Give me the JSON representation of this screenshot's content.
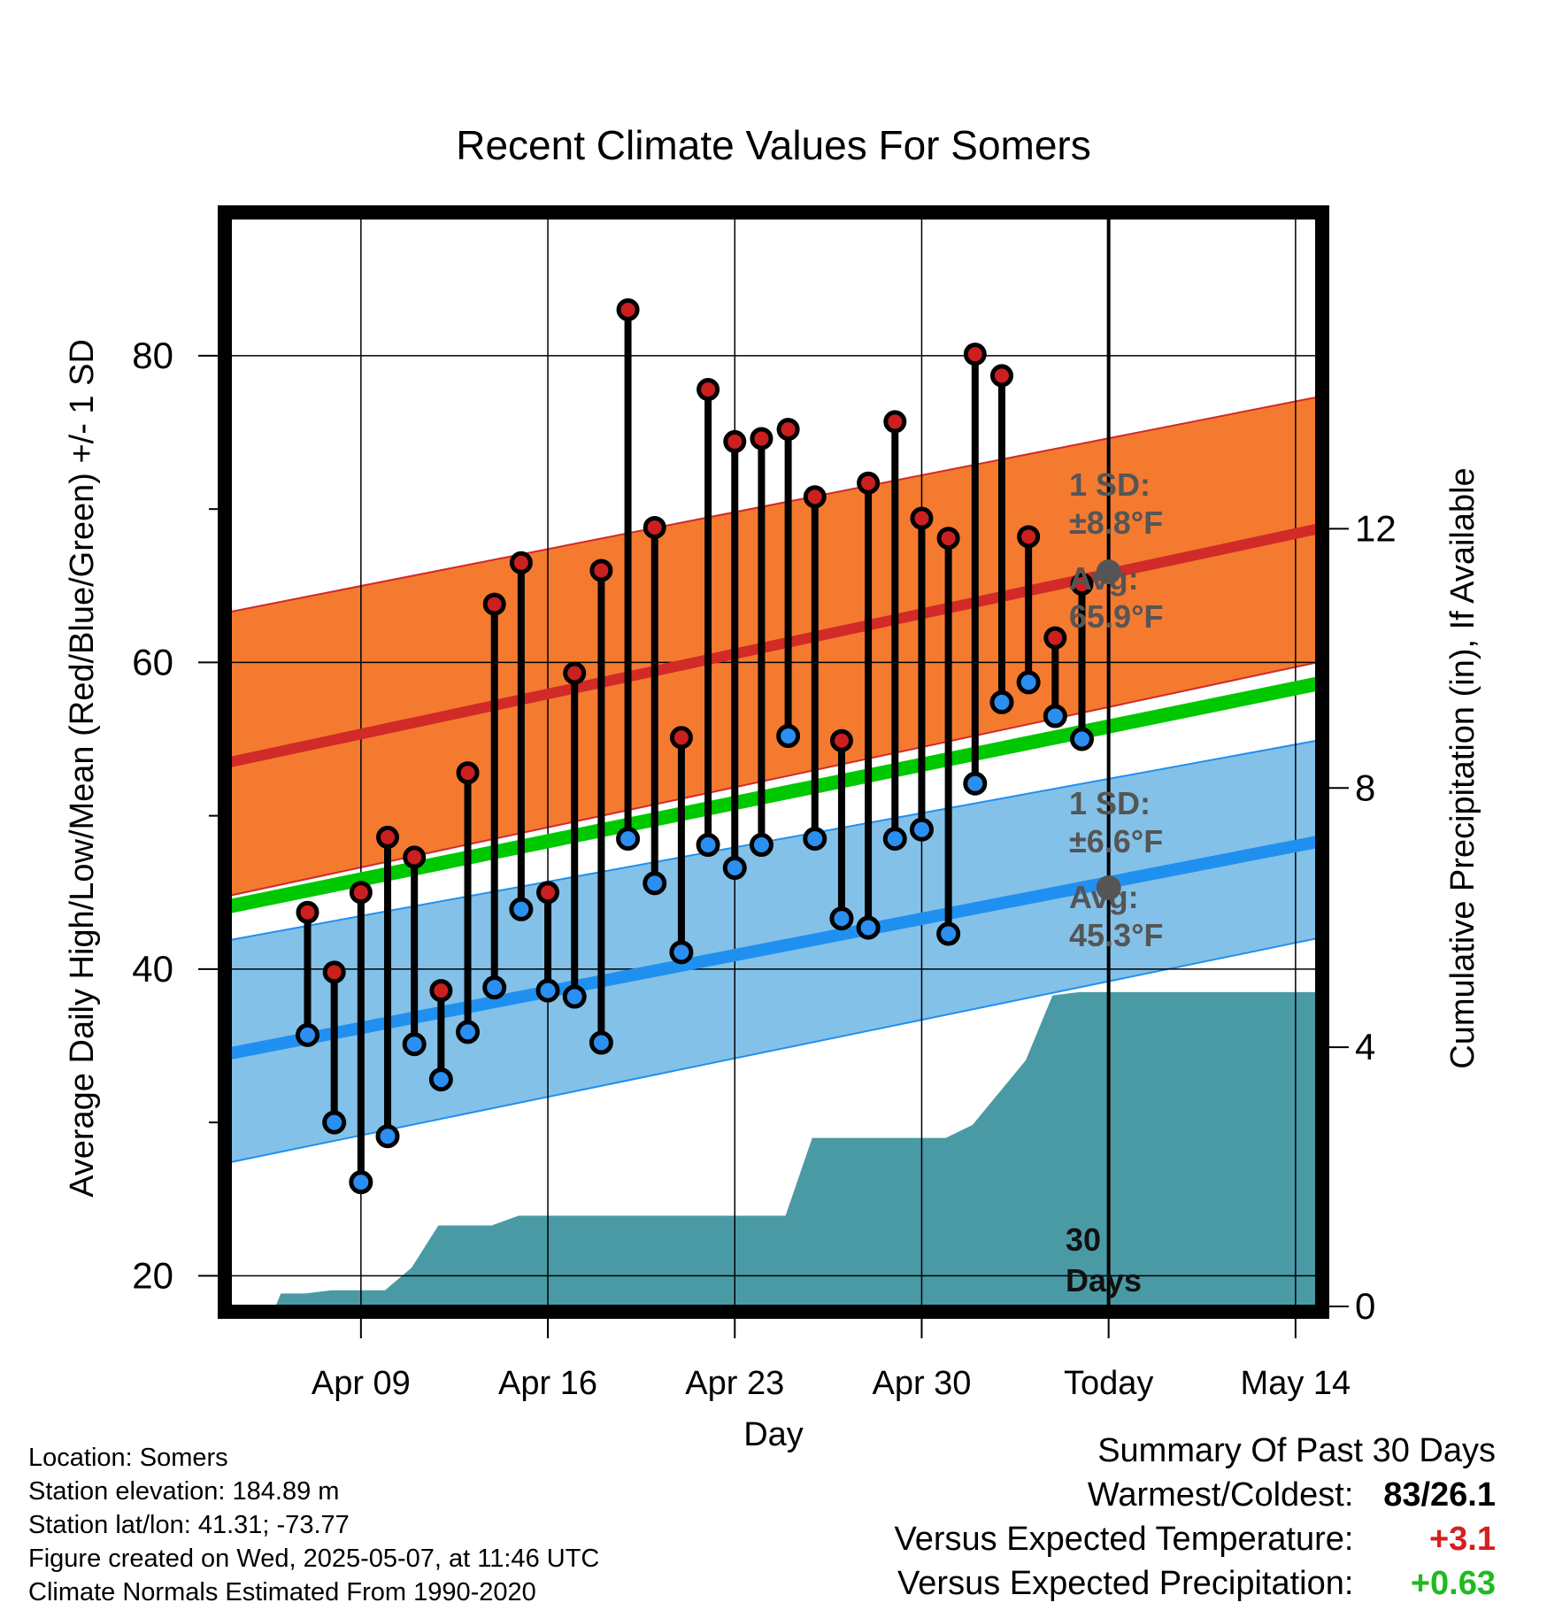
{
  "title": "Recent Climate Values For Somers",
  "colors": {
    "high_band": "#f47a30",
    "high_mean": "#d12a27",
    "low_band": "#84c1e8",
    "low_mean": "#2090f0",
    "green_mean": "#00c800",
    "precip": "#4a9aa5",
    "high_dot": "#cc1f1f",
    "low_dot": "#2a8ff0",
    "today_dot": "#555555",
    "warm": "#d42020",
    "wet": "#1fbb1f",
    "annot": "#555555"
  },
  "chart_data": {
    "type": "line",
    "xlabel": "Day",
    "ylabel": "Average Daily High/Low/Mean (Red/Blue/Green) +/- 1 SD",
    "y2label": "Cumulative Precipitation (in), If Available",
    "xlim": [
      -1.9,
      38.8
    ],
    "ylim": [
      18,
      89
    ],
    "y2lim": [
      0,
      16.8
    ],
    "x_ticks": [
      {
        "x": 3,
        "label": "Apr 09"
      },
      {
        "x": 10,
        "label": "Apr 16"
      },
      {
        "x": 17,
        "label": "Apr 23"
      },
      {
        "x": 24,
        "label": "Apr 30"
      },
      {
        "x": 31,
        "label": "Today"
      },
      {
        "x": 38,
        "label": "May 14"
      }
    ],
    "y_ticks": [
      20,
      40,
      60,
      80
    ],
    "y_minor_ticks": [
      30,
      50,
      70
    ],
    "y2_ticks": [
      0,
      4,
      8,
      12
    ],
    "today_x": 31,
    "normals_x": [
      -1.9,
      38.8
    ],
    "high_mean": [
      53.5,
      68.7
    ],
    "high_upper": [
      63.3,
      77.3
    ],
    "high_lower": [
      44.8,
      60.0
    ],
    "mean_line": [
      44.1,
      58.6
    ],
    "low_mean": [
      34.5,
      48.3
    ],
    "low_upper": [
      41.9,
      54.9
    ],
    "low_lower": [
      27.4,
      42.0
    ],
    "days": [
      1,
      2,
      3,
      4,
      5,
      6,
      7,
      8,
      9,
      10,
      11,
      12,
      13,
      14,
      15,
      16,
      17,
      18,
      19,
      20,
      21,
      22,
      23,
      24,
      25,
      26,
      27,
      28,
      29,
      30
    ],
    "highs": [
      43.7,
      39.8,
      45.0,
      48.6,
      47.3,
      38.6,
      52.8,
      63.8,
      66.5,
      45.0,
      59.3,
      66.0,
      83.0,
      68.8,
      55.1,
      77.8,
      74.4,
      74.6,
      75.2,
      70.8,
      54.9,
      71.7,
      75.7,
      69.4,
      68.1,
      80.1,
      78.7,
      68.2,
      61.6,
      65.1
    ],
    "lows": [
      35.7,
      30.0,
      26.1,
      29.1,
      35.1,
      32.8,
      35.9,
      38.8,
      43.9,
      38.6,
      38.2,
      35.2,
      48.5,
      45.6,
      41.1,
      48.1,
      46.6,
      48.1,
      55.2,
      48.5,
      43.3,
      42.7,
      48.5,
      49.1,
      42.3,
      52.1,
      57.4,
      58.7,
      56.5,
      55.0
    ],
    "precip_x": [
      -0.2,
      0.0,
      0.9,
      1.9,
      2.9,
      3.9,
      4.9,
      5.9,
      6.9,
      7.9,
      8.9,
      9.9,
      10.9,
      11.9,
      12.9,
      13.9,
      14.9,
      15.9,
      16.9,
      17.9,
      18.9,
      19.9,
      20.9,
      21.9,
      22.9,
      23.9,
      24.9,
      25.9,
      26.9,
      27.9,
      28.9,
      29.9,
      30.9,
      31.9,
      38.8
    ],
    "precip_y": [
      0.0,
      0.2,
      0.2,
      0.25,
      0.25,
      0.25,
      0.6,
      1.25,
      1.25,
      1.25,
      1.4,
      1.4,
      1.4,
      1.4,
      1.4,
      1.4,
      1.4,
      1.4,
      1.4,
      1.4,
      1.4,
      2.6,
      2.6,
      2.6,
      2.6,
      2.6,
      2.6,
      2.8,
      3.3,
      3.8,
      4.8,
      4.85,
      4.85,
      4.85,
      4.85
    ],
    "today_high_avg": 65.9,
    "today_low_avg": 45.3,
    "annotations": {
      "high_sd_label": "1 SD:",
      "high_sd_value": "±8.8°F",
      "high_avg_label": "Avg:",
      "high_avg_value": "65.9°F",
      "low_sd_label": "1 SD:",
      "low_sd_value": "±6.6°F",
      "low_avg_label": "Avg:",
      "low_avg_value": "45.3°F",
      "window_num": "30",
      "window_unit": "Days"
    }
  },
  "info": {
    "location": "Location: Somers",
    "elevation": "Station elevation: 184.89 m",
    "latlon": "Station lat/lon: 41.31; -73.77",
    "created": "Figure created on Wed, 2025-05-07, at 11:46 UTC",
    "normals": "Climate Normals Estimated From 1990-2020"
  },
  "summary": {
    "heading": "Summary Of Past 30 Days",
    "warmest_label": "Warmest/Coldest:",
    "warmest_value": "83/26.1",
    "temp_label": "Versus Expected Temperature:",
    "temp_value": "+3.1",
    "precip_label": "Versus Expected Precipitation:",
    "precip_value": "+0.63"
  }
}
